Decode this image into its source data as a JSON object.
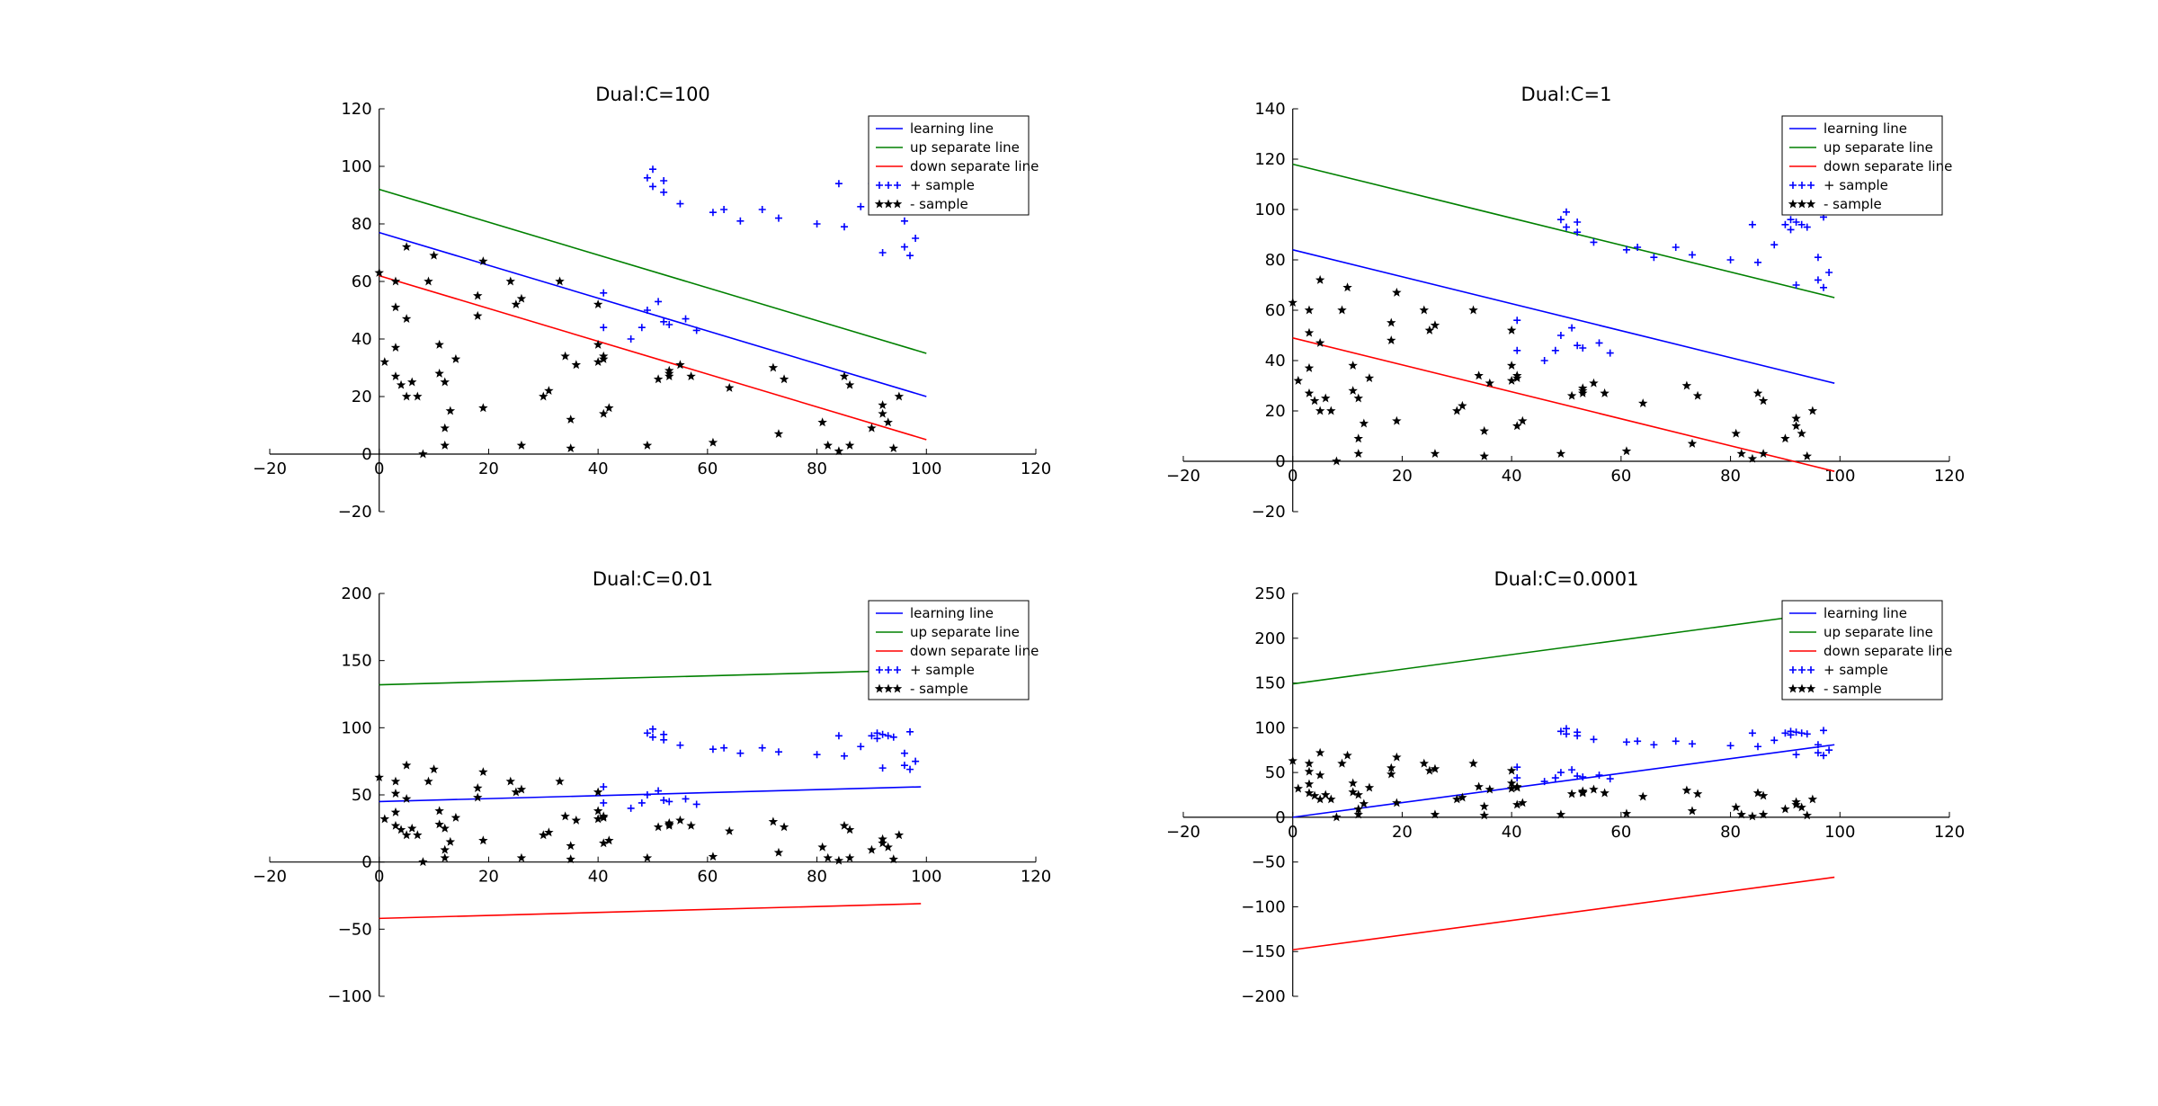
{
  "chart_data": [
    {
      "type": "scatter",
      "title": "Dual:C=100",
      "xlim": [
        -20,
        120
      ],
      "ylim": [
        -20,
        120
      ],
      "xticks": [
        -20,
        0,
        20,
        40,
        60,
        80,
        100,
        120
      ],
      "yticks": [
        -20,
        0,
        20,
        40,
        60,
        80,
        100,
        120
      ],
      "legend": {
        "placement": "top-right",
        "entries": [
          "learning line",
          "up separate line",
          "down separate line",
          "+ sample",
          "- sample"
        ]
      },
      "lines": [
        {
          "name": "learning line",
          "color": "#0000ff",
          "x": [
            0,
            100
          ],
          "y": [
            77,
            20
          ]
        },
        {
          "name": "up separate line",
          "color": "#008000",
          "x": [
            0,
            100
          ],
          "y": [
            92,
            35
          ]
        },
        {
          "name": "down separate line",
          "color": "#ff0000",
          "x": [
            0,
            100
          ],
          "y": [
            62,
            5
          ]
        }
      ],
      "series_ref": "samples"
    },
    {
      "type": "scatter",
      "title": "Dual:C=1",
      "xlim": [
        -20,
        120
      ],
      "ylim": [
        -20,
        140
      ],
      "xticks": [
        -20,
        0,
        20,
        40,
        60,
        80,
        100,
        120
      ],
      "yticks": [
        -20,
        0,
        20,
        40,
        60,
        80,
        100,
        120,
        140
      ],
      "legend": {
        "placement": "top-right",
        "entries": [
          "learning line",
          "up separate line",
          "down separate line",
          "+ sample",
          "- sample"
        ]
      },
      "lines": [
        {
          "name": "learning line",
          "color": "#0000ff",
          "x": [
            0,
            99
          ],
          "y": [
            84,
            31
          ]
        },
        {
          "name": "up separate line",
          "color": "#008000",
          "x": [
            0,
            99
          ],
          "y": [
            118,
            65
          ]
        },
        {
          "name": "down separate line",
          "color": "#ff0000",
          "x": [
            0,
            99
          ],
          "y": [
            49,
            -4
          ]
        }
      ],
      "series_ref": "samples"
    },
    {
      "type": "scatter",
      "title": "Dual:C=0.01",
      "xlim": [
        -20,
        120
      ],
      "ylim": [
        -100,
        200
      ],
      "xticks": [
        -20,
        0,
        20,
        40,
        60,
        80,
        100,
        120
      ],
      "yticks": [
        -100,
        -50,
        0,
        50,
        100,
        150,
        200
      ],
      "legend": {
        "placement": "top-right",
        "entries": [
          "learning line",
          "up separate line",
          "down separate line",
          "+ sample",
          "- sample"
        ]
      },
      "lines": [
        {
          "name": "learning line",
          "color": "#0000ff",
          "x": [
            0,
            99
          ],
          "y": [
            45,
            56
          ]
        },
        {
          "name": "up separate line",
          "color": "#008000",
          "x": [
            0,
            99
          ],
          "y": [
            132,
            143
          ]
        },
        {
          "name": "down separate line",
          "color": "#ff0000",
          "x": [
            0,
            99
          ],
          "y": [
            -42,
            -31
          ]
        }
      ],
      "series_ref": "samples"
    },
    {
      "type": "scatter",
      "title": "Dual:C=0.0001",
      "xlim": [
        -20,
        120
      ],
      "ylim": [
        -200,
        250
      ],
      "xticks": [
        -20,
        0,
        20,
        40,
        60,
        80,
        100,
        120
      ],
      "yticks": [
        -200,
        -150,
        -100,
        -50,
        0,
        50,
        100,
        150,
        200,
        250
      ],
      "legend": {
        "placement": "top-right",
        "entries": [
          "learning line",
          "up separate line",
          "down separate line",
          "+ sample",
          "- sample"
        ]
      },
      "lines": [
        {
          "name": "learning line",
          "color": "#0000ff",
          "x": [
            0,
            99
          ],
          "y": [
            0,
            81
          ]
        },
        {
          "name": "up separate line",
          "color": "#008000",
          "x": [
            0,
            99
          ],
          "y": [
            149,
            230
          ]
        },
        {
          "name": "down separate line",
          "color": "#ff0000",
          "x": [
            0,
            99
          ],
          "y": [
            -148,
            -67
          ]
        }
      ],
      "series_ref": "samples"
    }
  ],
  "samples": {
    "plus": {
      "name": "+ sample",
      "color": "#0000ff",
      "marker": "+",
      "points": [
        [
          50,
          99
        ],
        [
          49,
          96
        ],
        [
          52,
          95
        ],
        [
          50,
          93
        ],
        [
          52,
          91
        ],
        [
          55,
          87
        ],
        [
          61,
          84
        ],
        [
          63,
          85
        ],
        [
          66,
          81
        ],
        [
          70,
          85
        ],
        [
          73,
          82
        ],
        [
          80,
          80
        ],
        [
          85,
          79
        ],
        [
          84,
          94
        ],
        [
          88,
          86
        ],
        [
          90,
          94
        ],
        [
          91,
          96
        ],
        [
          92,
          95
        ],
        [
          91,
          92
        ],
        [
          93,
          94
        ],
        [
          94,
          93
        ],
        [
          97,
          97
        ],
        [
          96,
          81
        ],
        [
          98,
          75
        ],
        [
          96,
          72
        ],
        [
          97,
          69
        ],
        [
          92,
          70
        ],
        [
          48,
          44
        ],
        [
          46,
          40
        ],
        [
          51,
          53
        ],
        [
          49,
          50
        ],
        [
          52,
          46
        ],
        [
          53,
          45
        ],
        [
          56,
          47
        ],
        [
          58,
          43
        ],
        [
          41,
          44
        ],
        [
          41,
          56
        ]
      ]
    },
    "minus": {
      "name": "- sample",
      "color": "#000000",
      "marker": "star",
      "points": [
        [
          0,
          63
        ],
        [
          5,
          72
        ],
        [
          10,
          69
        ],
        [
          3,
          60
        ],
        [
          9,
          60
        ],
        [
          19,
          67
        ],
        [
          24,
          60
        ],
        [
          26,
          54
        ],
        [
          18,
          55
        ],
        [
          25,
          52
        ],
        [
          18,
          48
        ],
        [
          33,
          60
        ],
        [
          40,
          52
        ],
        [
          3,
          51
        ],
        [
          5,
          47
        ],
        [
          1,
          32
        ],
        [
          3,
          37
        ],
        [
          4,
          24
        ],
        [
          5,
          20
        ],
        [
          3,
          27
        ],
        [
          6,
          25
        ],
        [
          7,
          20
        ],
        [
          11,
          38
        ],
        [
          11,
          28
        ],
        [
          12,
          25
        ],
        [
          14,
          33
        ],
        [
          13,
          15
        ],
        [
          12,
          9
        ],
        [
          12,
          3
        ],
        [
          8,
          0
        ],
        [
          19,
          16
        ],
        [
          26,
          3
        ],
        [
          30,
          20
        ],
        [
          31,
          22
        ],
        [
          34,
          34
        ],
        [
          36,
          31
        ],
        [
          35,
          12
        ],
        [
          35,
          2
        ],
        [
          40,
          38
        ],
        [
          40,
          32
        ],
        [
          41,
          34
        ],
        [
          41,
          33
        ],
        [
          41,
          14
        ],
        [
          42,
          16
        ],
        [
          49,
          3
        ],
        [
          51,
          26
        ],
        [
          53,
          27
        ],
        [
          53,
          29
        ],
        [
          53,
          28
        ],
        [
          55,
          31
        ],
        [
          57,
          27
        ],
        [
          61,
          4
        ],
        [
          64,
          23
        ],
        [
          72,
          30
        ],
        [
          74,
          26
        ],
        [
          73,
          7
        ],
        [
          81,
          11
        ],
        [
          82,
          3
        ],
        [
          84,
          1
        ],
        [
          85,
          27
        ],
        [
          86,
          24
        ],
        [
          86,
          3
        ],
        [
          90,
          9
        ],
        [
          92,
          17
        ],
        [
          92,
          14
        ],
        [
          93,
          11
        ],
        [
          94,
          2
        ],
        [
          95,
          20
        ]
      ]
    }
  }
}
